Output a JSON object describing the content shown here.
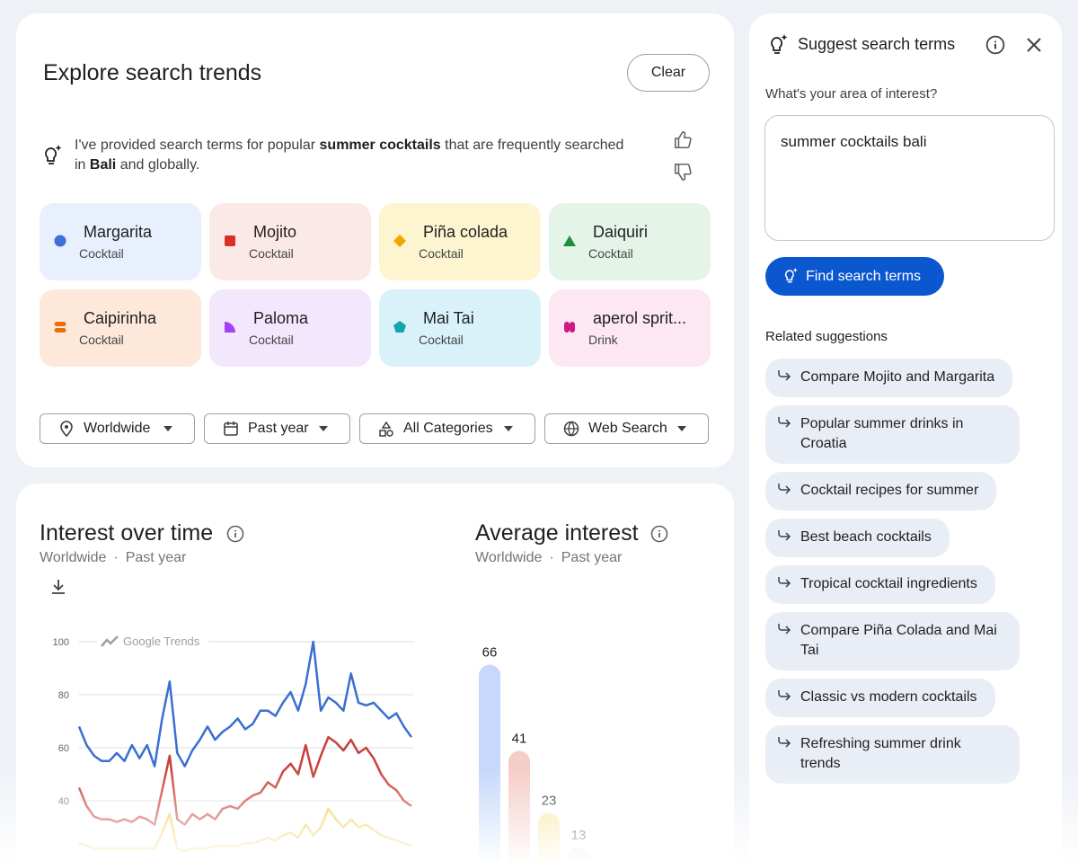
{
  "header": {
    "title": "Explore search trends",
    "clear_button": "Clear"
  },
  "ai_message": {
    "parts": [
      {
        "text": "I've provided search terms for popular ",
        "bold": false
      },
      {
        "text": "summer cocktails",
        "bold": true
      },
      {
        "text": " that are frequently searched in ",
        "bold": false
      },
      {
        "text": "Bali",
        "bold": true
      },
      {
        "text": " and globally.",
        "bold": false
      }
    ]
  },
  "terms": [
    {
      "name": "Margarita",
      "category": "Cocktail",
      "color": "#3d6fd9",
      "background": "#e9f0fd",
      "shape": "circle"
    },
    {
      "name": "Mojito",
      "category": "Cocktail",
      "color": "#d93025",
      "background": "#fbe9e7",
      "shape": "square"
    },
    {
      "name": "Piña colada",
      "category": "Cocktail",
      "color": "#f0a500",
      "background": "#fdf5cf",
      "shape": "diamond"
    },
    {
      "name": "Daiquiri",
      "category": "Cocktail",
      "color": "#1e8e3e",
      "background": "#e5f4e8",
      "shape": "triangle"
    },
    {
      "name": "Caipirinha",
      "category": "Cocktail",
      "color": "#e8710a",
      "background": "#fde8da",
      "shape": "pill"
    },
    {
      "name": "Paloma",
      "category": "Cocktail",
      "color": "#a142f4",
      "background": "#f2e7fd",
      "shape": "quarter"
    },
    {
      "name": "Mai Tai",
      "category": "Cocktail",
      "color": "#12a4af",
      "background": "#d9f2fa",
      "shape": "pentagon"
    },
    {
      "name": "aperol sprit...",
      "category": "Drink",
      "color": "#d01884",
      "background": "#fce7f2",
      "shape": "clover"
    }
  ],
  "filters": [
    "Worldwide",
    "Past year",
    "All Categories",
    "Web Search"
  ],
  "interest_over_time": {
    "title": "Interest over time",
    "location": "Worldwide",
    "separator": "·",
    "period": "Past year",
    "watermark": "Google Trends",
    "chart": {
      "type": "line",
      "ylim": [
        20,
        100
      ],
      "yticks": [
        40,
        60,
        80,
        100
      ],
      "grid": true,
      "series": [
        {
          "color": "#3a6fd0",
          "values": [
            68,
            61,
            57,
            55,
            55,
            58,
            55,
            61,
            56,
            61,
            53,
            71,
            85,
            58,
            53,
            59,
            63,
            68,
            63,
            66,
            68,
            71,
            67,
            69,
            74,
            74,
            72,
            77,
            81,
            74,
            84,
            100,
            74,
            79,
            77,
            74,
            88,
            77,
            76,
            77,
            74,
            71,
            73,
            68,
            64
          ]
        },
        {
          "color": "#c9413a",
          "values": [
            45,
            38,
            34,
            33,
            33,
            32,
            33,
            32,
            34,
            33,
            31,
            44,
            57,
            33,
            31,
            35,
            33,
            35,
            33,
            37,
            38,
            37,
            40,
            42,
            43,
            47,
            45,
            51,
            54,
            50,
            61,
            49,
            57,
            64,
            62,
            59,
            63,
            58,
            60,
            56,
            50,
            46,
            44,
            40,
            38
          ]
        },
        {
          "color": "#f1c84a",
          "values": [
            24,
            23,
            22,
            22,
            22,
            22,
            22,
            22,
            22,
            22,
            22,
            28,
            35,
            22,
            21,
            22,
            22,
            22,
            23,
            23,
            23,
            23,
            24,
            24,
            25,
            26,
            25,
            27,
            28,
            26,
            31,
            27,
            30,
            37,
            33,
            30,
            33,
            30,
            31,
            29,
            27,
            26,
            25,
            24,
            23
          ]
        }
      ]
    }
  },
  "average_interest": {
    "title": "Average interest",
    "location": "Worldwide",
    "separator": "·",
    "period": "Past year",
    "chart": {
      "type": "bar",
      "ylim": [
        0,
        100
      ],
      "values": [
        66,
        41,
        23,
        13
      ],
      "colors": [
        "#c6d8fb",
        "#f5cdc8",
        "#f9e6a0",
        "#c9e6cd"
      ]
    }
  },
  "suggest_panel": {
    "title": "Suggest search terms",
    "prompt": "What's your area of interest?",
    "input": "summer cocktails bali",
    "button": "Find search terms",
    "related_title": "Related suggestions",
    "suggestions": [
      "Compare Mojito and Margarita",
      "Popular summer drinks in Croatia",
      "Cocktail recipes for summer",
      "Best beach cocktails",
      "Tropical cocktail ingredients",
      "Compare Piña Colada and Mai Tai",
      "Classic vs modern cocktails",
      "Refreshing summer drink trends"
    ]
  }
}
